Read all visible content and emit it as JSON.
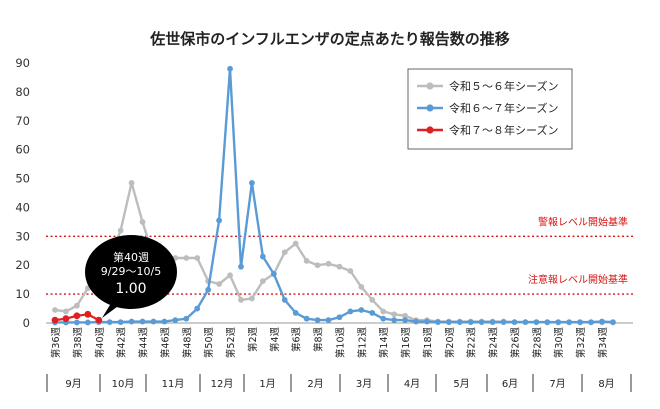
{
  "chart_data": {
    "type": "line",
    "title": "佐世保市のインフルエンザの定点あたり報告数の推移",
    "ylim": [
      0,
      90
    ],
    "yticks": [
      0,
      10,
      20,
      30,
      40,
      50,
      60,
      70,
      80,
      90
    ],
    "x_labels": [
      "第36週",
      "第38週",
      "第40週",
      "第42週",
      "第44週",
      "第46週",
      "第48週",
      "第50週",
      "第52週",
      "第2週",
      "第4週",
      "第6週",
      "第8週",
      "第10週",
      "第12週",
      "第14週",
      "第16週",
      "第18週",
      "第20週",
      "第22週",
      "第24週",
      "第26週",
      "第28週",
      "第30週",
      "第32週",
      "第34週"
    ],
    "months": [
      "9月",
      "10月",
      "11月",
      "12月",
      "1月",
      "2月",
      "3月",
      "4月",
      "5月",
      "6月",
      "7月",
      "8月"
    ],
    "series": [
      {
        "name": "令和５～６年シーズン",
        "color": "#bdbdbd",
        "values": [
          4.5,
          4.0,
          6.0,
          12.0,
          13.0,
          22.0,
          32.0,
          48.5,
          35.0,
          23.0,
          21.0,
          22.5,
          22.5,
          22.5,
          14.5,
          13.5,
          16.5,
          8.0,
          8.5,
          14.5,
          17.0,
          24.5,
          27.5,
          21.5,
          20.0,
          20.5,
          19.5,
          18.0,
          12.5,
          8.0,
          4.0,
          3.0,
          2.5,
          1.0,
          1.0,
          0.5,
          0.5,
          0.5,
          0.5,
          0.5,
          0.5,
          0.5,
          0.3,
          0.3,
          0.3,
          0.2,
          0.2,
          0.2,
          0.2,
          0.2,
          0.2,
          0.2
        ]
      },
      {
        "name": "令和６～７年シーズン",
        "color": "#5b9bd5",
        "values": [
          0.2,
          0.2,
          0.2,
          0.2,
          0.3,
          0.3,
          0.3,
          0.5,
          0.5,
          0.5,
          0.5,
          1.0,
          1.5,
          5.0,
          11.5,
          35.5,
          88.0,
          19.5,
          48.5,
          23.0,
          17.0,
          8.0,
          3.5,
          1.5,
          1.0,
          1.0,
          2.0,
          4.0,
          4.5,
          3.5,
          1.5,
          1.0,
          1.0,
          0.5,
          0.5,
          0.3,
          0.3,
          0.3,
          0.3,
          0.3,
          0.3,
          0.3,
          0.3,
          0.3,
          0.3,
          0.3,
          0.3,
          0.3,
          0.3,
          0.3,
          0.5,
          0.3
        ]
      },
      {
        "name": "令和７～８年シーズン",
        "color": "#e02020",
        "values": [
          1.0,
          1.5,
          2.5,
          3.0,
          1.0
        ]
      }
    ],
    "reference_lines": [
      {
        "label": "警報レベル開始基準",
        "value": 30
      },
      {
        "label": "注意報レベル開始基準",
        "value": 10
      }
    ],
    "annotation": {
      "line1": "第40週",
      "line2": "9/29～10/5",
      "value": "1.00"
    }
  }
}
